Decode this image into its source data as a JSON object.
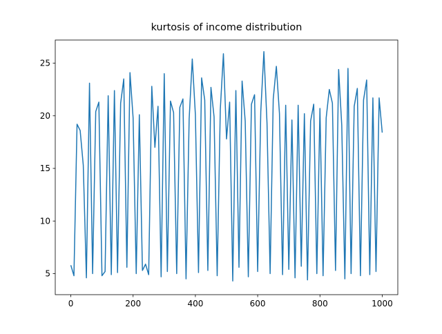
{
  "chart_data": {
    "type": "line",
    "title": "kurtosis of income distribution",
    "x": [
      0,
      10,
      20,
      30,
      40,
      50,
      60,
      70,
      80,
      90,
      100,
      110,
      120,
      130,
      140,
      150,
      160,
      170,
      180,
      190,
      200,
      210,
      220,
      230,
      240,
      250,
      260,
      270,
      280,
      290,
      300,
      310,
      320,
      330,
      340,
      350,
      360,
      370,
      380,
      390,
      400,
      410,
      420,
      430,
      440,
      450,
      460,
      470,
      480,
      490,
      500,
      510,
      520,
      530,
      540,
      550,
      560,
      570,
      580,
      590,
      600,
      610,
      620,
      630,
      640,
      650,
      660,
      670,
      680,
      690,
      700,
      710,
      720,
      730,
      740,
      750,
      760,
      770,
      780,
      790,
      800,
      810,
      820,
      830,
      840,
      850,
      860,
      870,
      880,
      890,
      900,
      910,
      920,
      930,
      940,
      950,
      960,
      970,
      980,
      990,
      1000
    ],
    "series": [
      {
        "color": "#1f77b4",
        "values": [
          5.8,
          4.8,
          19.2,
          18.6,
          15.3,
          4.6,
          23.1,
          5.0,
          20.4,
          21.3,
          4.8,
          5.2,
          21.9,
          4.9,
          22.4,
          5.1,
          21.2,
          23.5,
          5.6,
          24.1,
          19.8,
          5.0,
          20.1,
          5.3,
          5.9,
          4.9,
          22.8,
          17.0,
          20.9,
          4.7,
          24.0,
          5.2,
          21.4,
          20.3,
          5.0,
          20.8,
          21.6,
          4.5,
          19.7,
          25.4,
          20.1,
          5.1,
          23.6,
          21.5,
          5.3,
          22.7,
          19.9,
          4.8,
          20.6,
          25.9,
          17.8,
          21.3,
          4.3,
          22.4,
          5.6,
          23.3,
          19.5,
          4.7,
          21.1,
          22.0,
          5.2,
          20.4,
          26.1,
          19.3,
          5.0,
          21.6,
          24.7,
          20.2,
          4.9,
          21.0,
          5.4,
          19.6,
          4.6,
          21.0,
          5.7,
          20.2,
          4.4,
          19.5,
          21.1,
          5.0,
          20.7,
          4.8,
          19.8,
          22.5,
          21.2,
          5.3,
          24.4,
          19.1,
          4.5,
          24.5,
          5.0,
          20.9,
          22.6,
          4.8,
          21.5,
          23.4,
          4.9,
          21.7,
          5.2,
          21.7,
          18.4
        ]
      }
    ],
    "xlim": [
      -50,
      1050
    ],
    "ylim": [
      3.0,
      27.2
    ],
    "xticks": [
      0,
      200,
      400,
      600,
      800,
      1000
    ],
    "yticks": [
      5,
      10,
      15,
      20,
      25
    ]
  }
}
